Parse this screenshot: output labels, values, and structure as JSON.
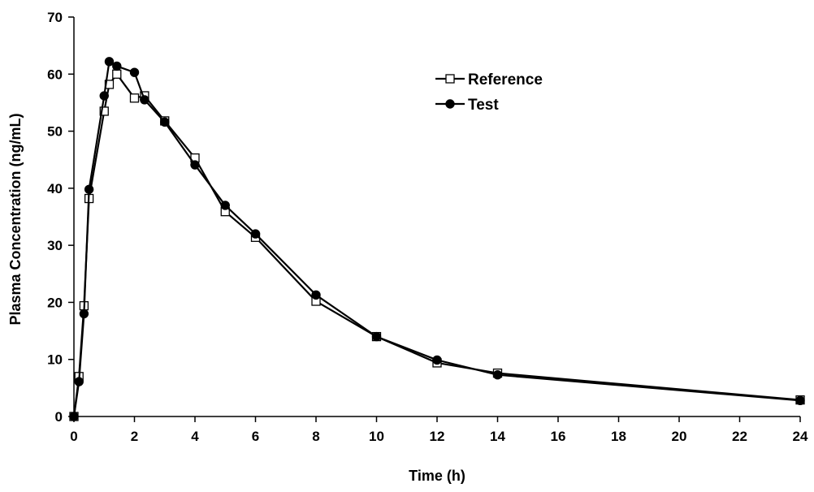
{
  "chart_data": {
    "type": "line",
    "xlabel": "Time (h)",
    "ylabel": "Plasma Concentration (ng/mL)",
    "xlim": [
      0,
      24
    ],
    "ylim": [
      0,
      70
    ],
    "xticks": [
      0,
      2,
      4,
      6,
      8,
      10,
      12,
      14,
      16,
      18,
      20,
      22,
      24
    ],
    "yticks": [
      0,
      10,
      20,
      30,
      40,
      50,
      60,
      70
    ],
    "grid": false,
    "legend_position": "top-right",
    "series": [
      {
        "name": "Reference",
        "marker": "open-square",
        "color": "#000000",
        "x": [
          0,
          0.167,
          0.333,
          0.5,
          1.0,
          1.167,
          1.417,
          2.0,
          2.333,
          3.0,
          4.0,
          5.0,
          6.0,
          8.0,
          10.0,
          12.0,
          14.0,
          24.0
        ],
        "y": [
          0,
          7.0,
          19.4,
          38.2,
          53.5,
          58.2,
          60.0,
          55.8,
          56.2,
          51.8,
          45.3,
          35.9,
          31.4,
          20.2,
          14.0,
          9.4,
          7.6,
          2.9
        ]
      },
      {
        "name": "Test",
        "marker": "filled-circle",
        "color": "#000000",
        "x": [
          0,
          0.167,
          0.333,
          0.5,
          1.0,
          1.167,
          1.417,
          2.0,
          2.333,
          3.0,
          4.0,
          5.0,
          6.0,
          8.0,
          10.0,
          12.0,
          14.0,
          24.0
        ],
        "y": [
          0,
          6.1,
          18.0,
          39.8,
          56.2,
          62.2,
          61.4,
          60.3,
          55.5,
          51.6,
          44.1,
          37.0,
          32.0,
          21.3,
          14.0,
          9.9,
          7.3,
          2.8
        ]
      }
    ]
  }
}
